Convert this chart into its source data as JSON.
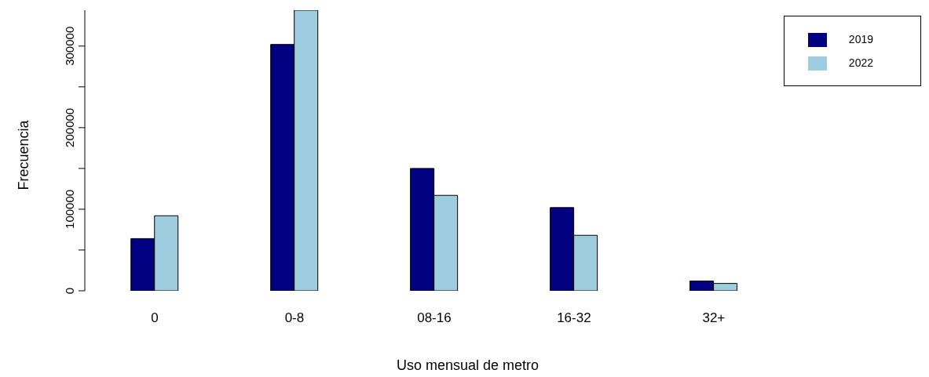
{
  "chart_data": {
    "type": "bar",
    "xlabel": "Uso mensual de metro",
    "ylabel": "Frecuencia",
    "categories": [
      "0",
      "0-8",
      "08-16",
      "16-32",
      "32+"
    ],
    "series": [
      {
        "name": "2019",
        "color": "#000080",
        "values": [
          64000,
          302000,
          150000,
          102000,
          12000
        ]
      },
      {
        "name": "2022",
        "color": "#9ecde0",
        "values": [
          92000,
          344000,
          117000,
          68000,
          9000
        ]
      }
    ],
    "ylim": [
      0,
      344000
    ],
    "yticks": [
      0,
      {
        "value": 50000,
        "label": null
      },
      100000,
      {
        "value": 150000,
        "label": null
      },
      200000,
      {
        "value": 250000,
        "label": null
      },
      300000
    ],
    "grid": false,
    "legend": "top right"
  }
}
